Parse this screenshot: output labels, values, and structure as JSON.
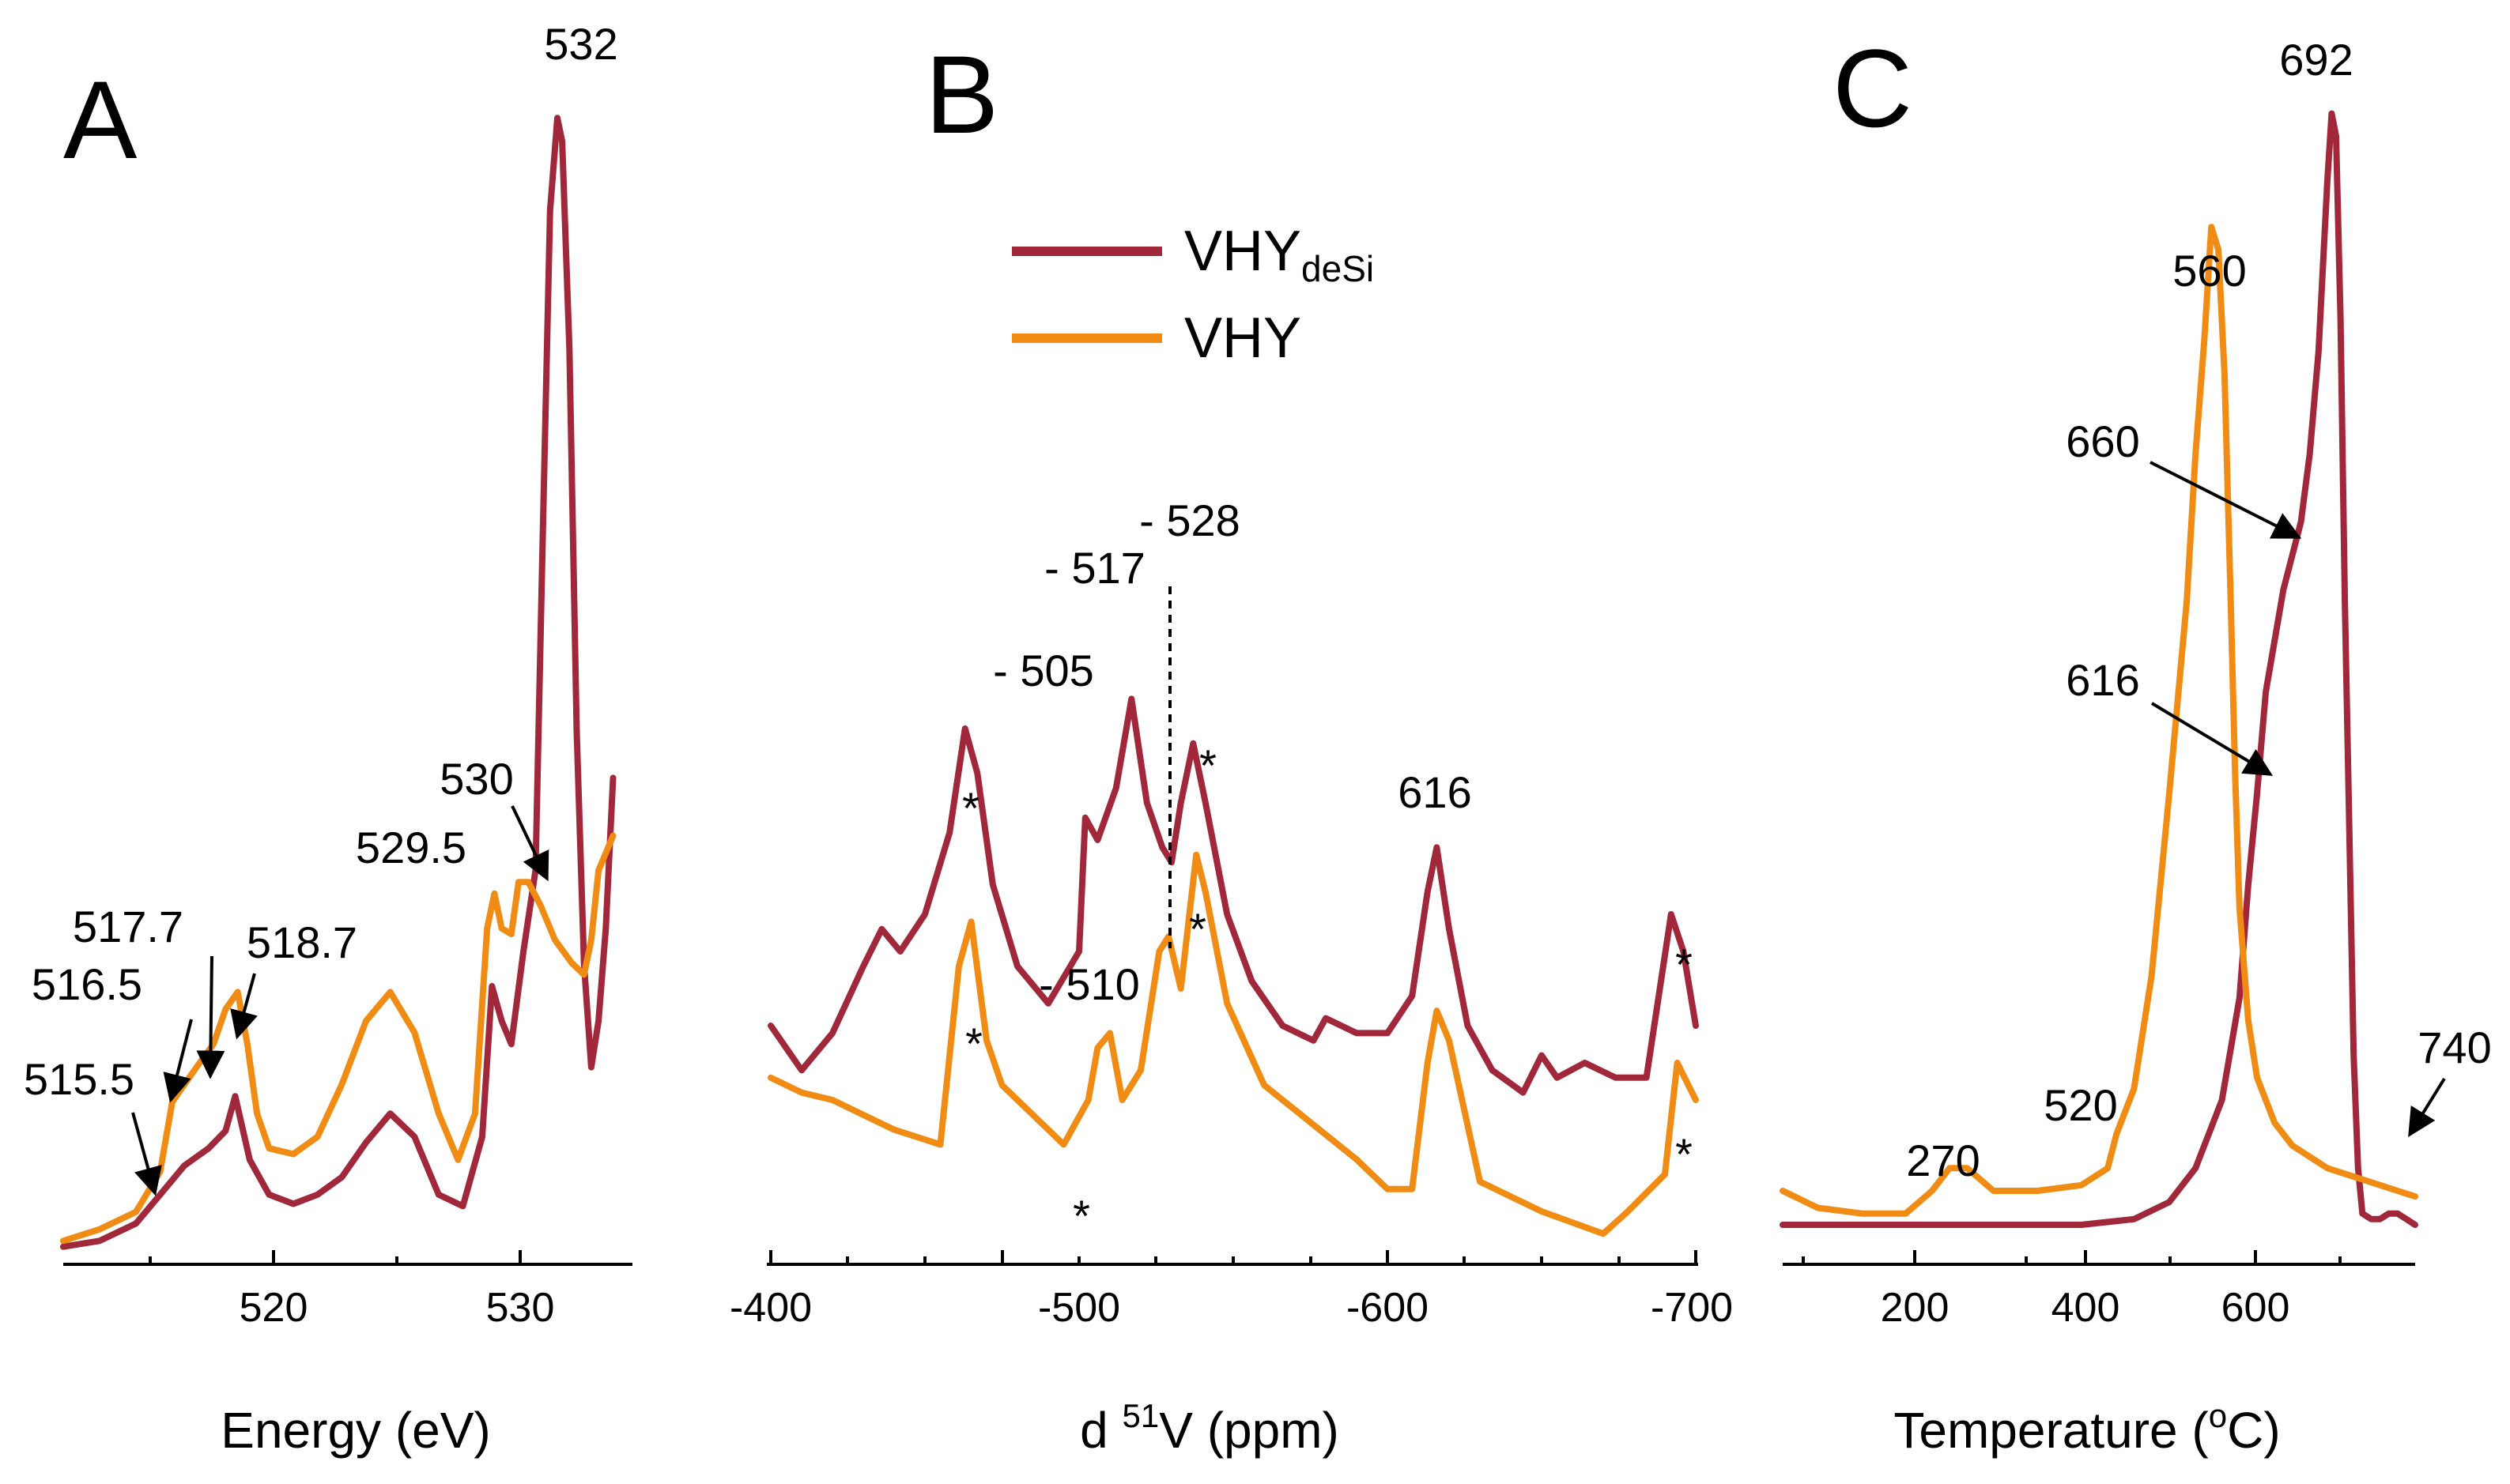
{
  "colors": {
    "VHYdeSi": "#A0283A",
    "VHY": "#F08C14",
    "axis": "#000000"
  },
  "legend": {
    "entries": [
      {
        "main": "VHY",
        "sub": "deSi",
        "color": "#A0283A"
      },
      {
        "main": "VHY",
        "sub": "",
        "color": "#F08C14"
      }
    ]
  },
  "chart_data": [
    {
      "panel": "A",
      "type": "line",
      "xlabel": "Energy (eV)",
      "ylabel": "",
      "xlim": [
        511.5,
        535
      ],
      "ylim": [
        0,
        100
      ],
      "xticks": [
        520,
        530
      ],
      "minor_ticks": [
        515,
        525
      ],
      "series": [
        {
          "name": "VHYdeSi",
          "color": "#A0283A",
          "x": [
            511.5,
            513,
            514.5,
            515.5,
            516.5,
            517.5,
            518.2,
            518.6,
            519.2,
            520,
            521,
            522,
            523,
            524,
            525,
            526,
            527,
            528,
            528.8,
            529.2,
            529.6,
            530,
            530.5,
            531,
            531.3,
            531.6,
            531.9,
            532.1,
            532.4,
            532.7,
            533,
            533.3,
            533.6,
            533.9,
            534.2
          ],
          "y": [
            0.5,
            1,
            2.5,
            5,
            7.5,
            9,
            10.5,
            13.5,
            8,
            5,
            4.2,
            5,
            6.5,
            9.5,
            12,
            10,
            5,
            4,
            10,
            23,
            20,
            18,
            26,
            33,
            62,
            90,
            98,
            96,
            78,
            45,
            25,
            16,
            20,
            28,
            41
          ]
        },
        {
          "name": "VHY",
          "color": "#F08C14",
          "x": [
            511.5,
            513,
            514.5,
            515.5,
            516,
            516.5,
            517,
            517.7,
            518.2,
            518.7,
            519.1,
            519.5,
            520,
            521,
            522,
            523,
            524,
            525,
            526,
            527,
            527.8,
            528.5,
            529,
            529.3,
            529.6,
            530,
            530.3,
            530.7,
            531.2,
            531.8,
            532.5,
            533,
            533.3,
            533.6,
            534.2
          ],
          "y": [
            1,
            2,
            3.5,
            7,
            13,
            14.5,
            16,
            18,
            21,
            22.5,
            18,
            12,
            9,
            8.5,
            10,
            14.5,
            20,
            22.5,
            19,
            12,
            8,
            12,
            28,
            31,
            28,
            27.5,
            32,
            32,
            30,
            27,
            25,
            24,
            27,
            33,
            36
          ]
        }
      ],
      "annotations": [
        "532",
        "530",
        "529.5",
        "517.7",
        "516.5",
        "518.7",
        "515.5"
      ]
    },
    {
      "panel": "B",
      "type": "line",
      "xlabel": "d 51V (ppm)",
      "xlim": [
        -400,
        -700
      ],
      "ylim": [
        0,
        100
      ],
      "xticks": [
        -400,
        -500,
        -600,
        -700
      ],
      "series": [
        {
          "name": "VHYdeSi",
          "color": "#A0283A",
          "x": [
            -400,
            -410,
            -420,
            -430,
            -436,
            -442,
            -450,
            -458,
            -463,
            -467,
            -472,
            -480,
            -490,
            -500,
            -502,
            -506,
            -512,
            -517,
            -522,
            -527,
            -530,
            -533,
            -537,
            -541,
            -548,
            -556,
            -566,
            -576,
            -580,
            -590,
            -600,
            -608,
            -613,
            -616,
            -620,
            -626,
            -634,
            -644,
            -650,
            -655,
            -664,
            -674,
            -684,
            -692,
            -696,
            -700
          ],
          "y": [
            30,
            24,
            29,
            38,
            43,
            40,
            45,
            56,
            70,
            64,
            49,
            38,
            33,
            40,
            58,
            55,
            62,
            74,
            60,
            54,
            52,
            60,
            68,
            60,
            45,
            36,
            30,
            28,
            31,
            29,
            29,
            34,
            48,
            54,
            43,
            30,
            24,
            21,
            26,
            23,
            25,
            23,
            23,
            45,
            40,
            30
          ]
        },
        {
          "name": "VHY",
          "color": "#F08C14",
          "x": [
            -400,
            -410,
            -420,
            -440,
            -455,
            -461,
            -465,
            -470,
            -475,
            -485,
            -495,
            -503,
            -506,
            -510,
            -514,
            -520,
            -526,
            -529,
            -533,
            -538,
            -541,
            -548,
            -560,
            -575,
            -590,
            -600,
            -608,
            -613,
            -616,
            -620,
            -630,
            -650,
            -670,
            -678,
            -690,
            -694,
            -700
          ],
          "y": [
            23,
            21,
            20,
            16,
            14,
            38,
            44,
            28,
            22,
            18,
            14,
            20,
            27,
            29,
            20,
            24,
            40,
            42,
            35,
            53,
            48,
            33,
            22,
            17,
            12,
            8,
            8,
            25,
            32,
            28,
            9,
            5,
            2,
            5,
            10,
            25,
            20
          ]
        }
      ],
      "annotations": [
        "- 528",
        "- 517",
        "- 505",
        "616",
        "- 510",
        "*",
        "*",
        "*",
        "*",
        "*",
        "*",
        "*"
      ]
    },
    {
      "panel": "C",
      "type": "line",
      "xlabel": "Temperature (°C)",
      "xlim": [
        60,
        780
      ],
      "ylim": [
        0,
        100
      ],
      "xticks": [
        200,
        400,
        600
      ],
      "minor_ticks": [
        100,
        300,
        500,
        700
      ],
      "series": [
        {
          "name": "VHYdeSi",
          "color": "#A0283A",
          "x": [
            60,
            200,
            300,
            400,
            460,
            500,
            530,
            560,
            580,
            590,
            600,
            610,
            630,
            650,
            660,
            670,
            680,
            685,
            690,
            695,
            700,
            705,
            710,
            715,
            720,
            730,
            740,
            750,
            760,
            770,
            780
          ],
          "y": [
            0,
            0,
            0,
            0,
            0.5,
            2,
            5,
            11,
            20,
            30,
            38,
            47,
            56,
            62,
            68,
            77,
            92,
            98,
            96,
            80,
            55,
            35,
            15,
            5,
            1,
            0.5,
            0.5,
            1,
            1,
            0.5,
            0
          ]
        },
        {
          "name": "VHY",
          "color": "#F08C14",
          "x": [
            60,
            100,
            150,
            200,
            230,
            250,
            270,
            300,
            350,
            400,
            430,
            440,
            460,
            480,
            500,
            520,
            530,
            540,
            548,
            556,
            563,
            570,
            575,
            580,
            590,
            600,
            620,
            640,
            660,
            680,
            700,
            720,
            740,
            760,
            780
          ],
          "y": [
            3,
            1.5,
            1,
            1,
            3,
            5,
            5,
            3,
            3,
            3.5,
            5,
            8,
            12,
            22,
            38,
            55,
            68,
            78,
            88,
            86,
            75,
            55,
            40,
            28,
            18,
            13,
            9,
            7,
            6,
            5,
            4.5,
            4,
            3.5,
            3,
            2.5
          ]
        }
      ],
      "annotations": [
        "692",
        "560",
        "660",
        "616",
        "740",
        "520",
        "270"
      ]
    }
  ],
  "panels": {
    "A": {
      "letter": "A",
      "xlabel": "Energy (eV)",
      "ticks": [
        "520",
        "530"
      ],
      "ann": {
        "a532": "532",
        "a530": "530",
        "a5295": "529.5",
        "a5177": "517.7",
        "a5165": "516.5",
        "a5187": "518.7",
        "a5155": "515.5"
      }
    },
    "B": {
      "letter": "B",
      "xlabel_pre": "d ",
      "xlabel_sup": "51",
      "xlabel_post": "V (ppm)",
      "ticks": [
        "-400",
        "-500",
        "-600",
        "-700"
      ],
      "ann": {
        "a528": "- 528",
        "a517": "- 517",
        "a505": "- 505",
        "a616": "616",
        "a510": "- 510",
        "star": "*"
      }
    },
    "C": {
      "letter": "C",
      "xlabel_pre": "Temperature (",
      "xlabel_sup": "o",
      "xlabel_post": "C)",
      "ticks": [
        "200",
        "400",
        "600"
      ],
      "ann": {
        "a692": "692",
        "a560": "560",
        "a660": "660",
        "a616": "616",
        "a740": "740",
        "a520": "520",
        "a270": "270"
      }
    }
  }
}
